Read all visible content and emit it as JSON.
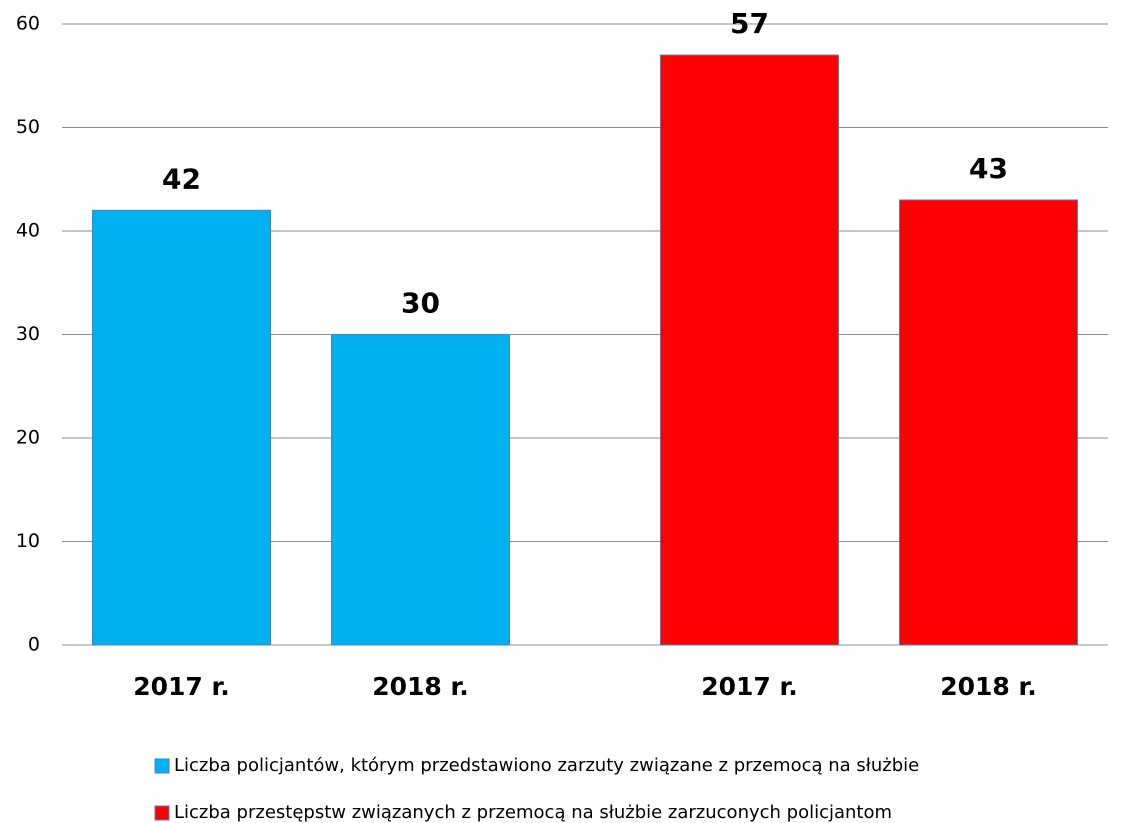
{
  "chart_data": {
    "type": "bar",
    "categories": [
      "2017 r.",
      "2018 r.",
      "2017 r.",
      "2018 r."
    ],
    "series": [
      {
        "name": "Liczba policjantów, którym przedstawiono zarzuty związane z przemocą na służbie",
        "color": "#00b0f0",
        "values": [
          42,
          30,
          null,
          null
        ]
      },
      {
        "name": "Liczba przestępstw związanych z przemocą na służbie zarzuconych policjantom",
        "color": "#ff0000",
        "values": [
          null,
          null,
          57,
          43
        ]
      }
    ],
    "ylim": [
      0,
      60
    ],
    "yticks": [
      0,
      10,
      20,
      30,
      40,
      50,
      60
    ],
    "grid": true,
    "legend": "bottom"
  }
}
